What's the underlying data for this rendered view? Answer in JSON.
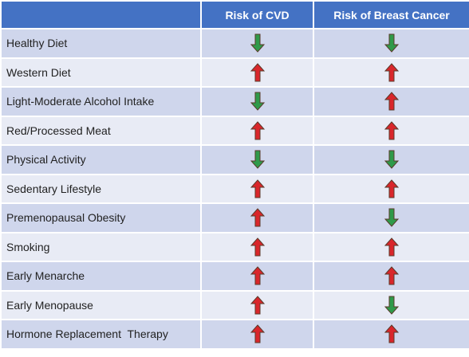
{
  "table": {
    "columns": [
      "Risk of CVD",
      "Risk of Breast Cancer"
    ],
    "rows": [
      {
        "label": "Healthy Diet",
        "effects": [
          "down",
          "down"
        ]
      },
      {
        "label": "Western Diet",
        "effects": [
          "up",
          "up"
        ]
      },
      {
        "label": "Light-Moderate Alcohol Intake",
        "effects": [
          "down",
          "up"
        ]
      },
      {
        "label": "Red/Processed Meat",
        "effects": [
          "up",
          "up"
        ]
      },
      {
        "label": "Physical Activity",
        "effects": [
          "down",
          "down"
        ]
      },
      {
        "label": "Sedentary Lifestyle",
        "effects": [
          "up",
          "up"
        ]
      },
      {
        "label": "Premenopausal Obesity",
        "effects": [
          "up",
          "down"
        ]
      },
      {
        "label": "Smoking",
        "effects": [
          "up",
          "up"
        ]
      },
      {
        "label": "Early Menarche",
        "effects": [
          "up",
          "up"
        ]
      },
      {
        "label": "Early Menopause",
        "effects": [
          "up",
          "down"
        ]
      },
      {
        "label": "Hormone Replacement  Therapy",
        "effects": [
          "up",
          "up"
        ]
      }
    ]
  }
}
